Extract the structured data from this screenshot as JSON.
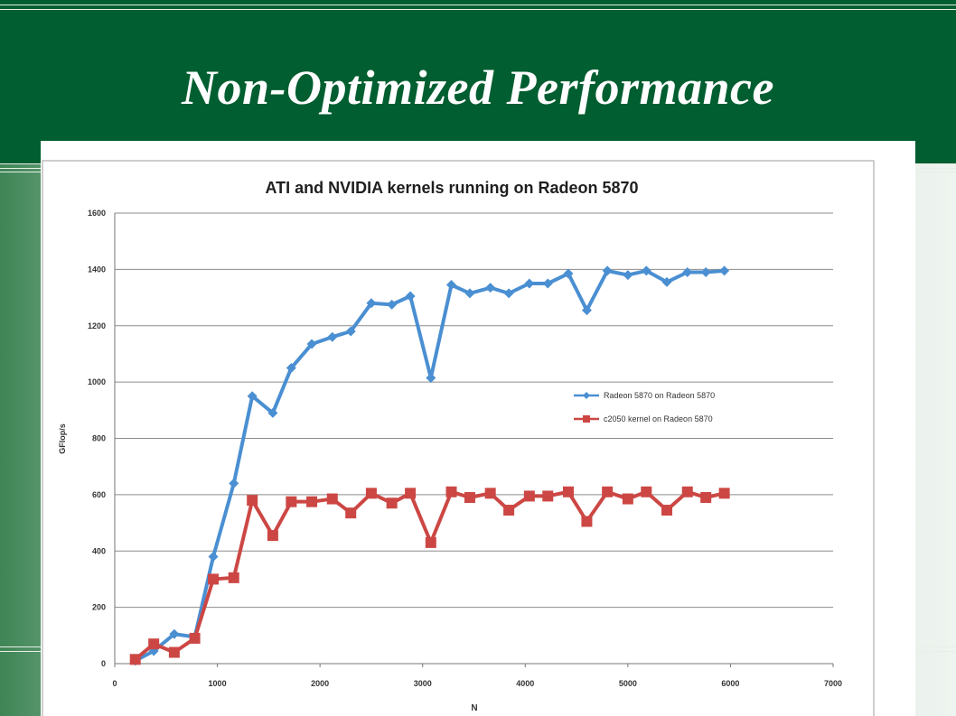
{
  "slide": {
    "title": "Non-Optimized Performance",
    "colors": {
      "header": "#005e30",
      "title_text": "#ffffff"
    }
  },
  "chart_data": {
    "type": "line",
    "title": "ATI and NVIDIA kernels running on Radeon 5870",
    "xlabel": "N",
    "ylabel": "GFlop/s",
    "xlim": [
      0,
      7000
    ],
    "ylim": [
      0,
      1600
    ],
    "xticks": [
      0,
      1000,
      2000,
      3000,
      4000,
      5000,
      6000,
      7000
    ],
    "yticks": [
      0,
      200,
      400,
      600,
      800,
      1000,
      1200,
      1400,
      1600
    ],
    "grid": true,
    "legend_position": "right",
    "series": [
      {
        "name": "Radeon 5870 on Radeon 5870",
        "color": "#4a8fd2",
        "marker": "diamond",
        "x": [
          200,
          380,
          580,
          780,
          960,
          1160,
          1340,
          1540,
          1720,
          1920,
          2120,
          2300,
          2500,
          2700,
          2880,
          3080,
          3280,
          3460,
          3660,
          3840,
          4040,
          4220,
          4420,
          4600,
          4800,
          5000,
          5180,
          5380,
          5580,
          5760,
          5940
        ],
        "y": [
          10,
          45,
          105,
          95,
          380,
          640,
          950,
          890,
          1050,
          1135,
          1160,
          1180,
          1280,
          1275,
          1305,
          1015,
          1345,
          1315,
          1335,
          1315,
          1350,
          1350,
          1385,
          1255,
          1395,
          1380,
          1395,
          1355,
          1390,
          1390,
          1395
        ]
      },
      {
        "name": "c2050 kernel on Radeon 5870",
        "color": "#cc4744",
        "marker": "square",
        "x": [
          200,
          380,
          580,
          780,
          960,
          1160,
          1340,
          1540,
          1720,
          1920,
          2120,
          2300,
          2500,
          2700,
          2880,
          3080,
          3280,
          3460,
          3660,
          3840,
          4040,
          4220,
          4420,
          4600,
          4800,
          5000,
          5180,
          5380,
          5580,
          5760,
          5940
        ],
        "y": [
          15,
          70,
          40,
          90,
          300,
          305,
          580,
          455,
          575,
          575,
          585,
          535,
          605,
          570,
          605,
          430,
          610,
          590,
          605,
          545,
          595,
          595,
          610,
          505,
          610,
          585,
          610,
          545,
          610,
          590,
          605
        ]
      }
    ]
  }
}
